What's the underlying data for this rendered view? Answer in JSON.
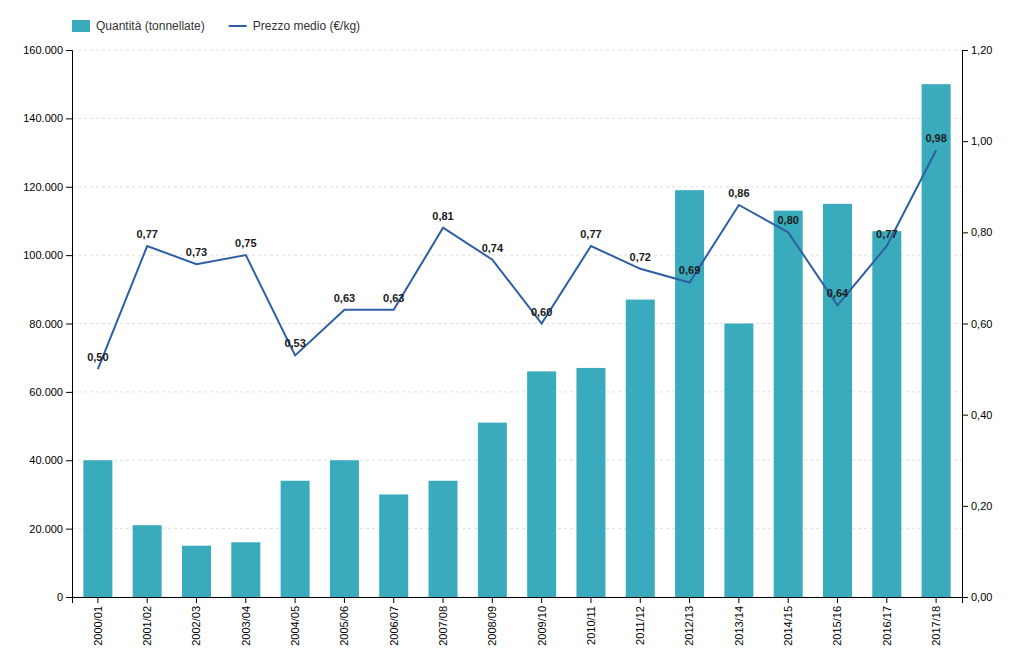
{
  "chart_data": {
    "type": "bar",
    "categories": [
      "2000/01",
      "2001/02",
      "2002/03",
      "2003/04",
      "2004/05",
      "2005/06",
      "2006/07",
      "2007/08",
      "2008/09",
      "2009/10",
      "2010/11",
      "2011/12",
      "2012/13",
      "2013/14",
      "2014/15",
      "2015/16",
      "2016/17",
      "2017/18"
    ],
    "series": [
      {
        "name": "Quantità (tonnellate)",
        "type": "bar",
        "color": "#3AABBC",
        "values": [
          40000,
          21000,
          15000,
          16000,
          34000,
          40000,
          30000,
          34000,
          51000,
          66000,
          67000,
          87000,
          119000,
          80000,
          113000,
          115000,
          107000,
          150000
        ]
      },
      {
        "name": "Prezzo medio (€/kg)",
        "type": "line",
        "color": "#2E5FA3",
        "axis": "y2",
        "data_labels": true,
        "values": [
          0.5,
          0.77,
          0.73,
          0.75,
          0.53,
          0.63,
          0.63,
          0.81,
          0.74,
          0.6,
          0.77,
          0.72,
          0.69,
          0.86,
          0.8,
          0.64,
          0.77,
          0.98
        ],
        "value_labels": [
          "0,50",
          "0,77",
          "0,73",
          "0,75",
          "0,53",
          "0,63",
          "0,63",
          "0,81",
          "0,74",
          "0,60",
          "0,77",
          "0,72",
          "0,69",
          "0,86",
          "0,80",
          "0,64",
          "0,77",
          "0,98"
        ]
      }
    ],
    "ylim": [
      0,
      160000
    ],
    "yticks": [
      0,
      {
        "value": 20000,
        "label": "20.000"
      },
      {
        "value": 40000,
        "label": "40.000"
      },
      {
        "value": 60000,
        "label": "60.000"
      },
      {
        "value": 80000,
        "label": "80.000"
      },
      {
        "value": 100000,
        "label": "100.000"
      },
      {
        "value": 120000,
        "label": "120.000"
      },
      {
        "value": 140000,
        "label": "140.000"
      },
      {
        "value": 160000,
        "label": "160.000"
      }
    ],
    "y2lim": [
      0,
      1.2
    ],
    "y2ticks": [
      {
        "value": 0.0,
        "label": "0,00"
      },
      {
        "value": 0.2,
        "label": "0,20"
      },
      {
        "value": 0.4,
        "label": "0,40"
      },
      {
        "value": 0.6,
        "label": "0,60"
      },
      {
        "value": 0.8,
        "label": "0,80"
      },
      {
        "value": 1.0,
        "label": "1,00"
      },
      {
        "value": 1.2,
        "label": "1,20"
      }
    ],
    "grid": true,
    "legend": "upper left"
  }
}
